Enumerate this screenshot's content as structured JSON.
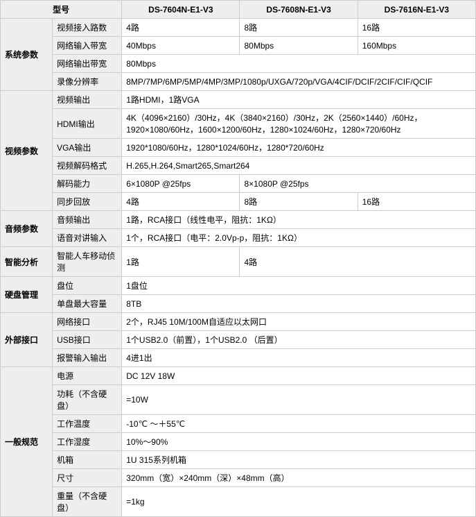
{
  "header": {
    "model": "型号",
    "m1": "DS-7604N-E1-V3",
    "m2": "DS-7608N-E1-V3",
    "m3": "DS-7616N-E1-V3"
  },
  "sys": {
    "cat": "系统参数",
    "video_in": {
      "label": "视频接入路数",
      "v1": "4路",
      "v2": "8路",
      "v3": "16路"
    },
    "net_in": {
      "label": "网络输入带宽",
      "v1": "40Mbps",
      "v2": "80Mbps",
      "v3": "160Mbps"
    },
    "net_out": {
      "label": "网络输出带宽",
      "v": "80Mbps"
    },
    "rec_res": {
      "label": "录像分辨率",
      "v": "8MP/7MP/6MP/5MP/4MP/3MP/1080p/UXGA/720p/VGA/4CIF/DCIF/2CIF/CIF/QCIF"
    }
  },
  "video": {
    "cat": "视频参数",
    "out": {
      "label": "视频输出",
      "v": "1路HDMI，1路VGA"
    },
    "hdmi": {
      "label": "HDMI输出",
      "v": "4K（4096×2160）/30Hz，4K（3840×2160）/30Hz，2K（2560×1440）/60Hz，1920×1080/60Hz，1600×1200/60Hz，1280×1024/60Hz，1280×720/60Hz"
    },
    "vga": {
      "label": "VGA输出",
      "v": "1920*1080/60Hz，1280*1024/60Hz，1280*720/60Hz"
    },
    "codec": {
      "label": "视频解码格式",
      "v": "H.265,H.264,Smart265,Smart264"
    },
    "decode": {
      "label": "解码能力",
      "v1": "6×1080P @25fps",
      "v2": "8×1080P @25fps"
    },
    "sync": {
      "label": "同步回放",
      "v1": "4路",
      "v2": "8路",
      "v3": "16路"
    }
  },
  "audio": {
    "cat": "音频参数",
    "out": {
      "label": "音频输出",
      "v": "1路，RCA接口（线性电平，阻抗：1KΩ）"
    },
    "talk": {
      "label": "语音对讲输入",
      "v": "1个，RCA接口（电平：2.0Vp-p，阻抗：1KΩ）"
    }
  },
  "smart": {
    "cat": "智能分析",
    "motion": {
      "label": "智能人车移动侦测",
      "v1": "1路",
      "v2": "4路"
    }
  },
  "hdd": {
    "cat": "硬盘管理",
    "slot": {
      "label": "盘位",
      "v": "1盘位"
    },
    "max": {
      "label": "单盘最大容量",
      "v": "8TB"
    }
  },
  "ext": {
    "cat": "外部接口",
    "net": {
      "label": "网络接口",
      "v": "2个，RJ45 10M/100M自适应以太网口"
    },
    "usb": {
      "label": "USB接口",
      "v": "1个USB2.0（前置），1个USB2.0 （后置）"
    },
    "alarm": {
      "label": "报警输入输出",
      "v": "4进1出"
    }
  },
  "gen": {
    "cat": "一般规范",
    "power": {
      "label": "电源",
      "v": "DC 12V 18W"
    },
    "consume": {
      "label": "功耗（不含硬盘）",
      "v": "=10W"
    },
    "temp": {
      "label": "工作温度",
      "v": "-10℃ ～＋55℃"
    },
    "humid": {
      "label": "工作湿度",
      "v": "10%～90%"
    },
    "case": {
      "label": "机箱",
      "v": "1U 315系列机箱"
    },
    "size": {
      "label": "尺寸",
      "v": "320mm（宽）×240mm（深）×48mm（高）"
    },
    "weight": {
      "label": "重量（不含硬盘）",
      "v": "=1kg"
    }
  }
}
